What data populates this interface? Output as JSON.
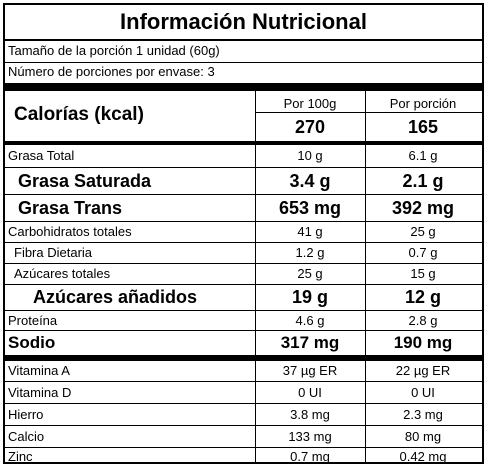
{
  "title": "Información Nutricional",
  "serving_size": "Tamaño de la porción 1 unidad (60g)",
  "servings_per_container": "Número de porciones por envase:  3",
  "calories": {
    "label": "Calorías (kcal)",
    "col1_header": "Por 100g",
    "col2_header": "Por porción",
    "per100": "270",
    "perServing": "165"
  },
  "nutrients": [
    {
      "label": "Grasa Total",
      "per100": "10 g",
      "perServing": "6.1 g"
    },
    {
      "label": "Grasa Saturada",
      "per100": "3.4 g",
      "perServing": "2.1 g"
    },
    {
      "label": "Grasa Trans",
      "per100": "653 mg",
      "perServing": "392 mg"
    },
    {
      "label": "Carbohidratos totales",
      "per100": "41 g",
      "perServing": "25 g"
    },
    {
      "label": "Fibra Dietaria",
      "per100": "1.2 g",
      "perServing": "0.7 g"
    },
    {
      "label": "Azúcares totales",
      "per100": "25 g",
      "perServing": "15 g"
    },
    {
      "label": "Azúcares añadidos",
      "per100": "19 g",
      "perServing": "12 g"
    },
    {
      "label": "Proteína",
      "per100": "4.6 g",
      "perServing": "2.8 g"
    },
    {
      "label": "Sodio",
      "per100": "317 mg",
      "perServing": "190 mg"
    }
  ],
  "vitamins": [
    {
      "label": "Vitamina A",
      "per100": "37 µg ER",
      "perServing": "22 µg ER"
    },
    {
      "label": "Vitamina D",
      "per100": "0 UI",
      "perServing": "0 UI"
    },
    {
      "label": "Hierro",
      "per100": "3.8 mg",
      "perServing": "2.3 mg"
    },
    {
      "label": "Calcio",
      "per100": "133 mg",
      "perServing": "80 mg"
    },
    {
      "label": "Zinc",
      "per100": "0.7 mg",
      "perServing": "0.42 mg"
    }
  ]
}
